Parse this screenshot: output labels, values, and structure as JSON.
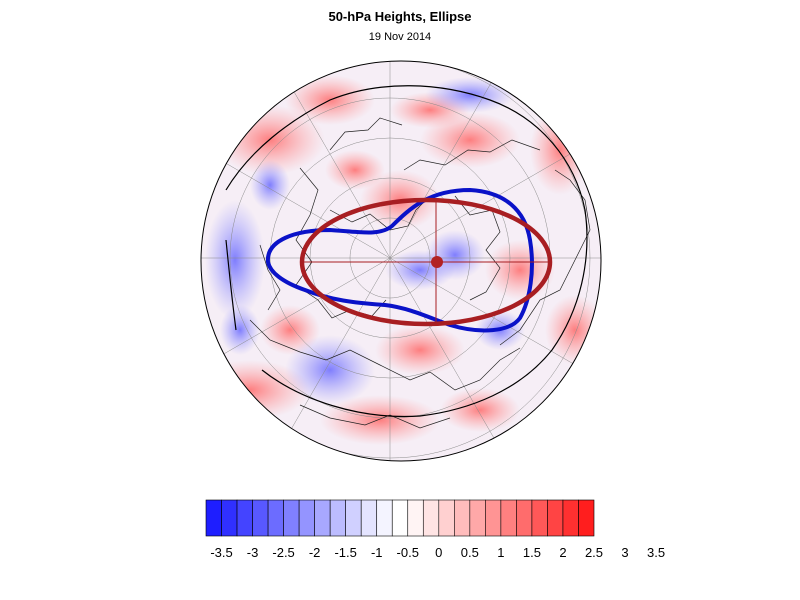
{
  "title": "50-hPa Heights, Ellipse",
  "subtitle": "19 Nov 2014",
  "map": {
    "projection": "north-polar-stereographic",
    "anomaly_field": "50-hPa height anomaly (shaded)",
    "negative_color": "#2020ff",
    "positive_color": "#ff2020",
    "reference_contour_color": "#000000",
    "vortex_edge_color": "#0a12c8",
    "ellipse_color": "#a81e22",
    "ellipse_center_color": "#b22222"
  },
  "colorbar": {
    "labels": [
      "-3.5",
      "-3",
      "-2.5",
      "-2",
      "-1.5",
      "-1",
      "-0.5",
      "0",
      "0.5",
      "1",
      "1.5",
      "2",
      "2.5",
      "3",
      "3.5"
    ],
    "colors": [
      "#1e1eff",
      "#3030ff",
      "#4444ff",
      "#5858ff",
      "#6c6cff",
      "#8080ff",
      "#9494ff",
      "#a8a8ff",
      "#bcbcff",
      "#d0d0ff",
      "#e4e4ff",
      "#f4f4ff",
      "#ffffff",
      "#fff4f4",
      "#ffe4e4",
      "#ffd0d0",
      "#ffbcbc",
      "#ffa8a8",
      "#ff9494",
      "#ff8080",
      "#ff6c6c",
      "#ff5858",
      "#ff4444",
      "#ff3030",
      "#ff1e1e"
    ]
  }
}
